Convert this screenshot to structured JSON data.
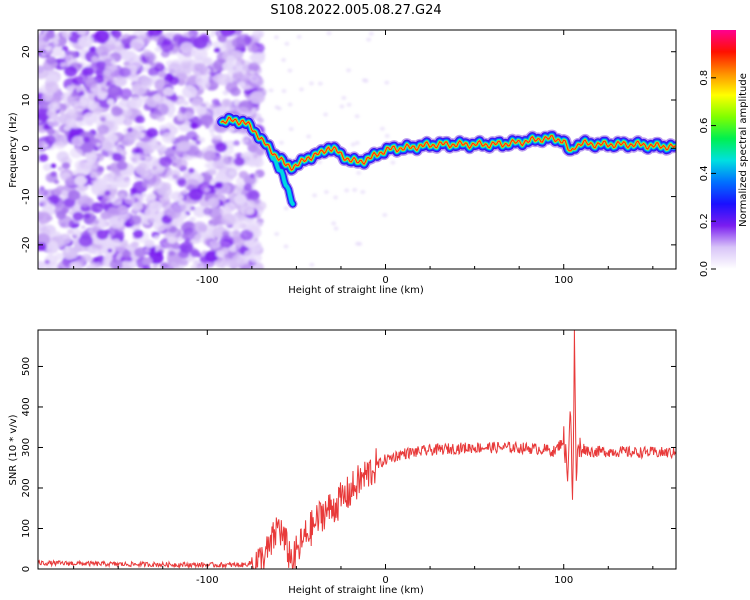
{
  "figure": {
    "title": "S108.2022.005.08.27.G24"
  },
  "chart_data": [
    {
      "type": "heatmap",
      "xlabel": "Height of straight line (km)",
      "ylabel": "Frequency (Hz)",
      "xlim": [
        -195,
        163
      ],
      "ylim": [
        -25,
        24.5
      ],
      "xticks": [
        -100,
        0,
        100
      ],
      "yticks": [
        -20,
        -10,
        0,
        10,
        20
      ],
      "grid": false,
      "noise_region_x": [
        -195,
        -78
      ],
      "ridge": {
        "x": [
          -92,
          -85,
          -80,
          -76,
          -72,
          -68,
          -64,
          -60,
          -56,
          -52,
          -48,
          -44,
          -40,
          -36,
          -32,
          -28,
          -24,
          -20,
          -16,
          -12,
          -8,
          -4,
          0,
          5,
          10,
          15,
          20,
          30,
          40,
          50,
          60,
          70,
          80,
          88,
          94,
          98,
          100,
          102,
          104,
          106,
          110,
          120,
          130,
          140,
          150,
          163
        ],
        "y": [
          5.5,
          5.8,
          5.5,
          4.5,
          3.0,
          1.0,
          -0.5,
          -2.0,
          -3.5,
          -3.8,
          -3.2,
          -2.0,
          -1.5,
          -1.0,
          0.2,
          -0.5,
          -1.5,
          -2.5,
          -2.8,
          -2.5,
          -2.0,
          -1.0,
          -0.5,
          0.0,
          0.0,
          0.2,
          0.5,
          0.8,
          0.8,
          0.8,
          0.8,
          1.0,
          1.5,
          2.0,
          2.0,
          1.8,
          1.5,
          0.0,
          -1.0,
          0.5,
          1.0,
          0.8,
          0.8,
          0.8,
          0.5,
          0.3
        ]
      },
      "branch": {
        "x": [
          -64,
          -60,
          -56,
          -52
        ],
        "y": [
          -1.0,
          -4.0,
          -7.5,
          -11.0
        ]
      },
      "colorbar": {
        "label": "Normalized spectral amplitude",
        "range": [
          0,
          1
        ],
        "ticks": [
          0.0,
          0.2,
          0.4,
          0.6,
          0.8
        ],
        "colors": [
          "#ffffff",
          "#d8c4f8",
          "#7a1df0",
          "#1a10ff",
          "#0070ff",
          "#00e0e0",
          "#00f050",
          "#80ff00",
          "#ffff00",
          "#ff9000",
          "#ff1000",
          "#ff0090"
        ]
      }
    },
    {
      "type": "line",
      "xlabel": "Height of straight line (km)",
      "ylabel": "SNR (10 * v/v)",
      "xlim": [
        -195,
        163
      ],
      "ylim": [
        0,
        590
      ],
      "xticks": [
        -100,
        0,
        100
      ],
      "yticks": [
        0,
        100,
        200,
        300,
        400,
        500
      ],
      "grid": false,
      "color": "#e83a3a",
      "x": [
        -195,
        -150,
        -100,
        -80,
        -70,
        -65,
        -60,
        -57,
        -55,
        -52,
        -50,
        -45,
        -40,
        -35,
        -30,
        -25,
        -20,
        -15,
        -10,
        -5,
        0,
        10,
        20,
        25,
        30,
        40,
        50,
        60,
        70,
        80,
        90,
        95,
        100,
        102,
        104,
        105,
        106,
        107,
        108,
        110,
        115,
        120,
        130,
        140,
        150,
        160,
        163
      ],
      "y": [
        15,
        12,
        10,
        10,
        20,
        50,
        110,
        70,
        50,
        15,
        40,
        80,
        110,
        140,
        150,
        170,
        190,
        215,
        235,
        255,
        270,
        285,
        290,
        293,
        295,
        298,
        300,
        300,
        300,
        298,
        295,
        290,
        320,
        240,
        410,
        130,
        560,
        230,
        290,
        300,
        290,
        290,
        290,
        288,
        288,
        287,
        285
      ]
    }
  ]
}
